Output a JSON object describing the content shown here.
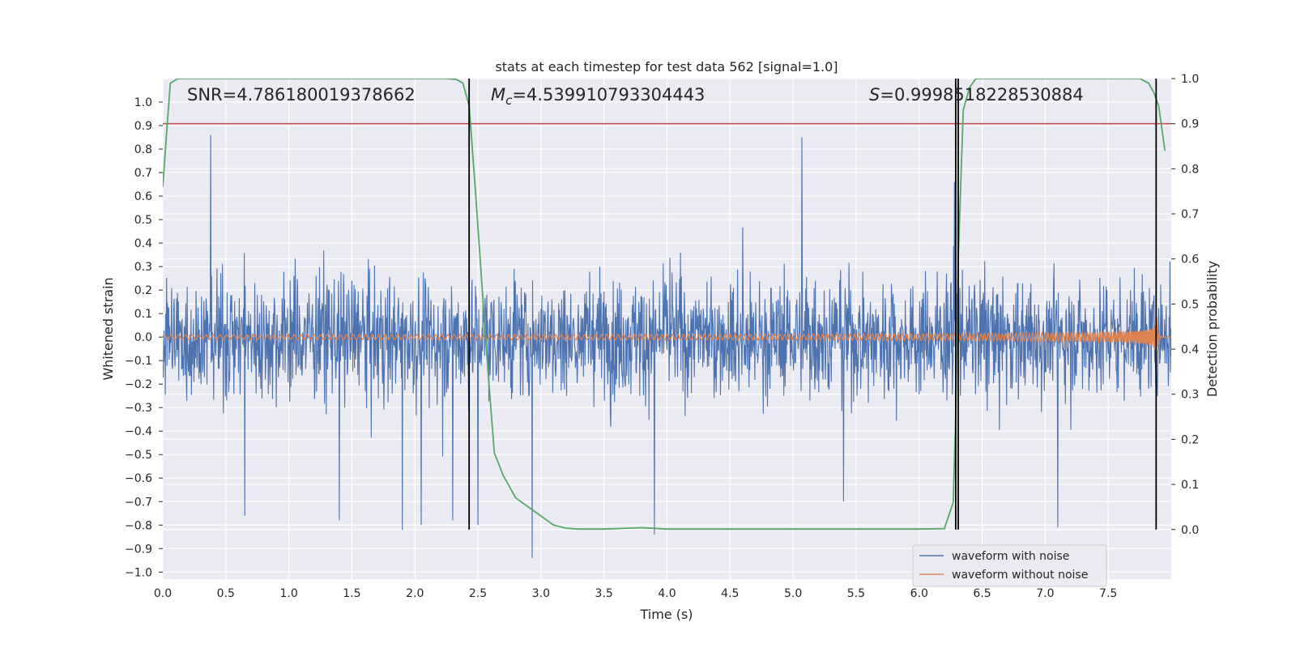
{
  "chart_data": {
    "type": "line",
    "title": "stats at each timestep for test data 562 [signal=1.0]",
    "xlabel": "Time (s)",
    "ylabel_left": "Whitened strain",
    "ylabel_right": "Detection probability",
    "xlim": [
      0.0,
      8.0
    ],
    "ylim_left": [
      -1.03,
      1.1
    ],
    "ylim_right": [
      -0.11,
      1.0
    ],
    "x_ticks": [
      0.0,
      0.5,
      1.0,
      1.5,
      2.0,
      2.5,
      3.0,
      3.5,
      4.0,
      4.5,
      5.0,
      5.5,
      6.0,
      6.5,
      7.0,
      7.5
    ],
    "x_tick_labels": [
      "0.0",
      "0.5",
      "1.0",
      "1.5",
      "2.0",
      "2.5",
      "3.0",
      "3.5",
      "4.0",
      "4.5",
      "5.0",
      "5.5",
      "6.0",
      "6.5",
      "7.0",
      "7.5"
    ],
    "y_left_ticks": [
      1.0,
      0.9,
      0.8,
      0.7,
      0.6,
      0.5,
      0.4,
      0.3,
      0.2,
      0.1,
      0.0,
      -0.1,
      -0.2,
      -0.3,
      -0.4,
      -0.5,
      -0.6,
      -0.7,
      -0.8,
      -0.9,
      -1.0
    ],
    "y_left_tick_labels": [
      "1.0",
      "0.9",
      "0.8",
      "0.7",
      "0.6",
      "0.5",
      "0.4",
      "0.3",
      "0.2",
      "0.1",
      "0.0",
      "−0.1",
      "−0.2",
      "−0.3",
      "−0.4",
      "−0.5",
      "−0.6",
      "−0.7",
      "−0.8",
      "−0.9",
      "−1.0"
    ],
    "y_right_ticks": [
      1.0,
      0.9,
      0.8,
      0.7,
      0.6,
      0.5,
      0.4,
      0.3,
      0.2,
      0.1,
      0.0
    ],
    "y_right_tick_labels": [
      "1.0",
      "0.9",
      "0.8",
      "0.7",
      "0.6",
      "0.5",
      "0.4",
      "0.3",
      "0.2",
      "0.1",
      "0.0"
    ],
    "annotations": {
      "snr": "SNR=4.786180019378662",
      "mc": "=4.539910793304443",
      "mc_symbol": "M",
      "mc_sub": "c",
      "s": "=0.9998518228530884",
      "s_symbol": "S"
    },
    "threshold_line": {
      "axis": "right",
      "value": 0.9,
      "color": "#c44e52"
    },
    "event_lines_x": [
      2.43,
      6.29,
      6.31,
      7.88
    ],
    "series": [
      {
        "name": "waveform with noise",
        "axis": "left",
        "color": "#4c72b0",
        "kind": "noise",
        "x_range": [
          0.0,
          8.0
        ],
        "typical_envelope": [
          -0.42,
          0.44
        ],
        "spikes": [
          {
            "x": 0.38,
            "y": 0.86
          },
          {
            "x": 0.65,
            "y": -0.76
          },
          {
            "x": 1.4,
            "y": -0.78
          },
          {
            "x": 1.9,
            "y": -0.82
          },
          {
            "x": 2.05,
            "y": -0.8
          },
          {
            "x": 2.3,
            "y": -0.78
          },
          {
            "x": 2.5,
            "y": -0.8
          },
          {
            "x": 2.93,
            "y": -0.94
          },
          {
            "x": 3.9,
            "y": -0.84
          },
          {
            "x": 5.07,
            "y": 0.85
          },
          {
            "x": 5.4,
            "y": -0.7
          },
          {
            "x": 6.28,
            "y": 0.66
          },
          {
            "x": 7.1,
            "y": -0.81
          },
          {
            "x": 6.87,
            "y": -0.1
          }
        ]
      },
      {
        "name": "waveform without noise",
        "axis": "left",
        "color": "#dd8452",
        "kind": "chirp",
        "merger_time": 7.88,
        "peak_amplitude": 0.13,
        "base_amplitude": 0.01
      },
      {
        "name": "detection probability",
        "axis": "right",
        "color": "#55a868",
        "x": [
          0.0,
          0.03,
          0.06,
          0.12,
          0.3,
          1.0,
          2.0,
          2.25,
          2.33,
          2.38,
          2.43,
          2.48,
          2.53,
          2.58,
          2.63,
          2.7,
          2.8,
          2.95,
          3.1,
          3.2,
          3.3,
          3.5,
          3.8,
          4.0,
          5.0,
          6.0,
          6.2,
          6.27,
          6.29,
          6.31,
          6.35,
          6.4,
          6.45,
          6.5,
          7.0,
          7.75,
          7.82,
          7.86,
          7.9,
          7.95
        ],
        "y": [
          0.76,
          0.88,
          0.99,
          1.0,
          1.0,
          1.0,
          1.0,
          1.0,
          0.998,
          0.99,
          0.94,
          0.75,
          0.55,
          0.35,
          0.17,
          0.12,
          0.07,
          0.04,
          0.01,
          0.003,
          0.001,
          0.001,
          0.004,
          0.001,
          0.001,
          0.001,
          0.002,
          0.06,
          0.25,
          0.6,
          0.93,
          0.98,
          1.0,
          1.0,
          1.0,
          1.0,
          0.99,
          0.97,
          0.94,
          0.84
        ]
      }
    ],
    "legend": {
      "placement": "bottom-right",
      "entries": [
        {
          "label": "waveform with noise",
          "color": "#4c72b0"
        },
        {
          "label": "waveform without noise",
          "color": "#dd8452"
        }
      ]
    },
    "style": {
      "plot_background": "#eaeaf2",
      "grid_color": "#ffffff",
      "event_line_color": "#000000",
      "text_color": "#262626"
    }
  }
}
